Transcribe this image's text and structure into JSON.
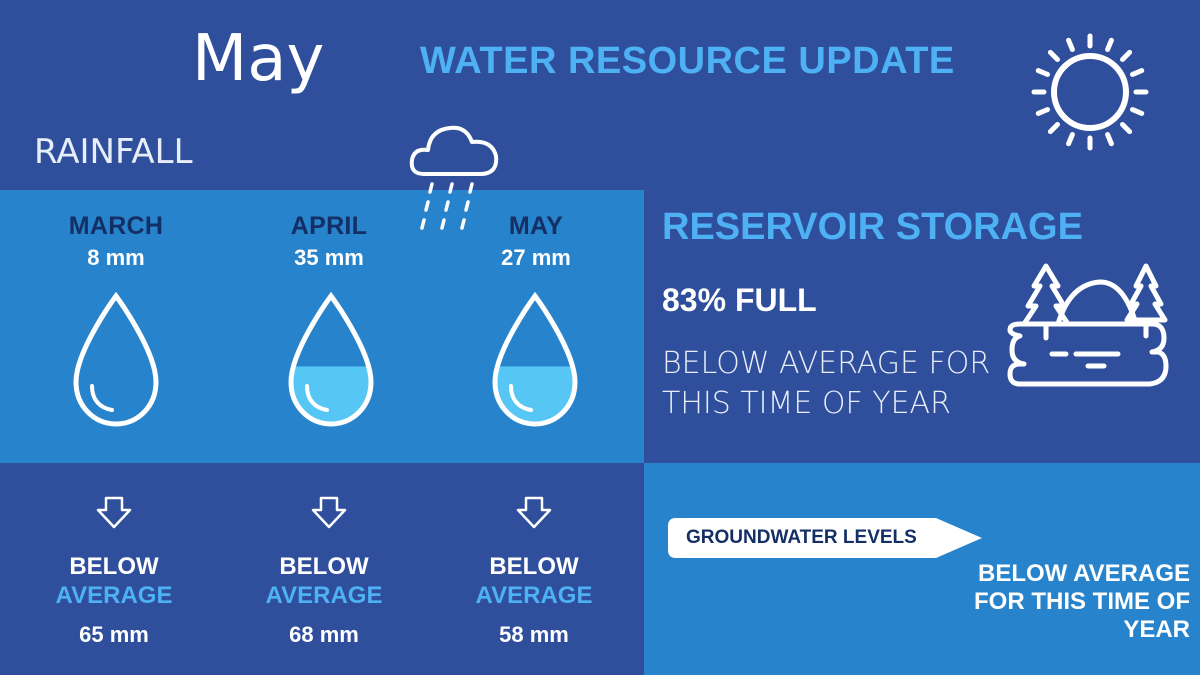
{
  "header": {
    "month": "May",
    "title": "WATER RESOURCE UPDATE"
  },
  "rainfall": {
    "label": "RAINFALL",
    "months": [
      {
        "name": "MARCH",
        "amount": "8 mm",
        "fill_fraction": 0.0,
        "status_line1": "BELOW",
        "status_line2": "AVERAGE",
        "average": "65 mm"
      },
      {
        "name": "APRIL",
        "amount": "35 mm",
        "fill_fraction": 0.45,
        "status_line1": "BELOW",
        "status_line2": "AVERAGE",
        "average": "68 mm"
      },
      {
        "name": "MAY",
        "amount": "27 mm",
        "fill_fraction": 0.45,
        "status_line1": "BELOW",
        "status_line2": "AVERAGE",
        "average": "58 mm"
      }
    ]
  },
  "reservoir": {
    "title": "RESERVOIR STORAGE",
    "level": "83% FULL",
    "description": "BELOW AVERAGE FOR THIS TIME OF YEAR"
  },
  "groundwater": {
    "label": "GROUNDWATER LEVELS",
    "description": "BELOW AVERAGE FOR THIS TIME OF YEAR"
  },
  "icons": [
    "sun-icon",
    "rain-cloud-icon",
    "water-drop-icon",
    "down-arrow-icon",
    "reservoir-landscape-icon"
  ],
  "colors": {
    "background": "#2f4f9c",
    "panel": "#2783cb",
    "accent": "#4db1f4",
    "dark_text": "#142f66",
    "water_fill": "#56c6f5"
  }
}
